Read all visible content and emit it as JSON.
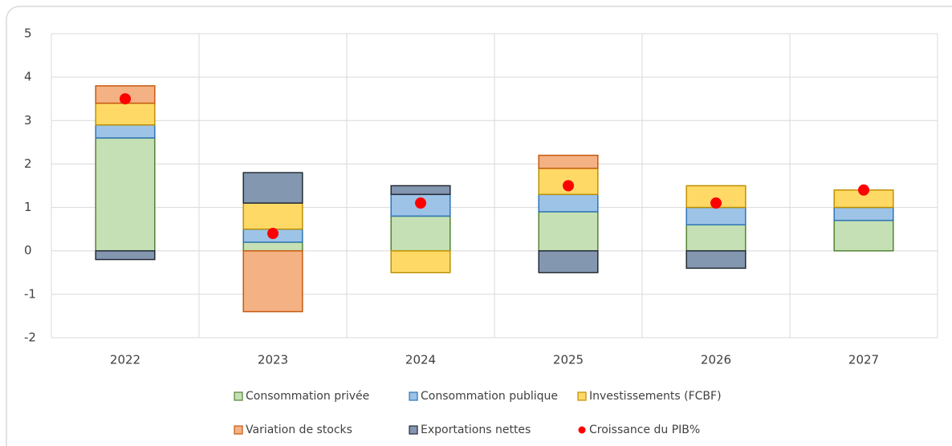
{
  "chart_data": {
    "type": "bar",
    "stacked": true,
    "categories": [
      "2022",
      "2023",
      "2024",
      "2025",
      "2026",
      "2027"
    ],
    "series": [
      {
        "name": "Consommation privée",
        "color": "#c5e0b4",
        "edge": "#548235",
        "values": [
          2.6,
          0.2,
          0.8,
          0.9,
          0.6,
          0.7
        ]
      },
      {
        "name": "Consommation publique",
        "color": "#9dc3e6",
        "edge": "#2e75b6",
        "values": [
          0.3,
          0.3,
          0.5,
          0.4,
          0.4,
          0.3
        ]
      },
      {
        "name": "Investissements (FCBF)",
        "color": "#ffd966",
        "edge": "#bf9000",
        "values": [
          0.5,
          0.6,
          -0.5,
          0.6,
          0.5,
          0.4
        ]
      },
      {
        "name": "Variation de stocks",
        "color": "#f4b183",
        "edge": "#c55a11",
        "values": [
          0.4,
          -1.4,
          0,
          0.3,
          0,
          0
        ]
      },
      {
        "name": "Exportations nettes",
        "color": "#8497b0",
        "edge": "#222a35",
        "values": [
          -0.2,
          0.7,
          0.2,
          -0.5,
          -0.4,
          0
        ]
      },
      {
        "name": "Croissance du PIB%",
        "type": "scatter",
        "color": "#ff0000",
        "values": [
          3.5,
          0.4,
          1.1,
          1.5,
          1.1,
          1.4
        ]
      }
    ],
    "ylim": [
      -2,
      5
    ],
    "yticks": [
      -2,
      -1,
      0,
      1,
      2,
      3,
      4,
      5
    ],
    "grid": true,
    "legend": "bottom"
  }
}
